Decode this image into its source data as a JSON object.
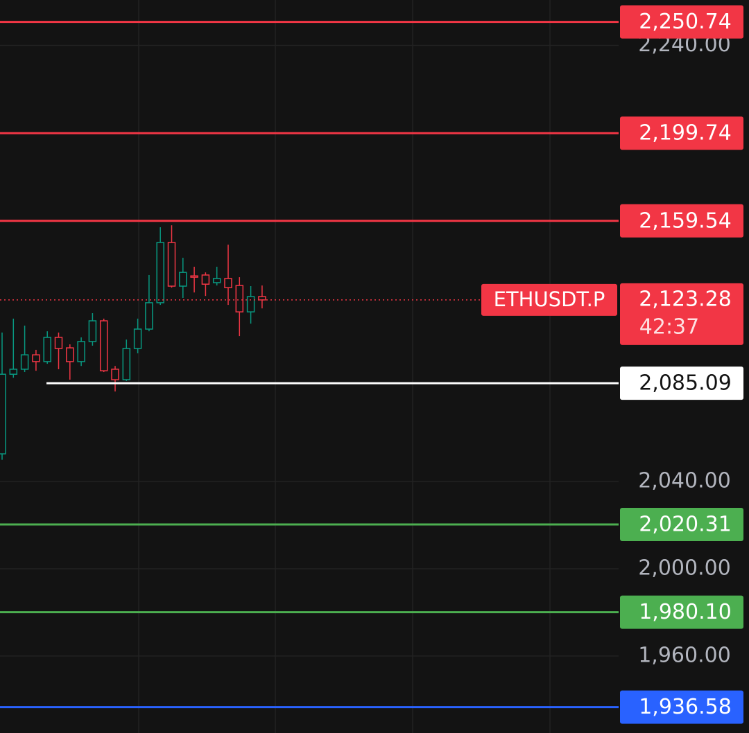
{
  "chart_data": {
    "type": "candlestick",
    "categories": [
      null,
      null,
      null,
      null,
      null,
      null,
      null,
      null,
      null,
      null,
      null,
      null,
      null,
      null,
      null,
      null,
      null,
      null,
      null,
      null,
      null,
      null,
      null,
      null
    ],
    "open": [
      2052.7,
      2089.2,
      2091.5,
      2098.1,
      2095.0,
      2106.1,
      2101.3,
      2095.0,
      2104.2,
      2113.7,
      2091.5,
      2086.7,
      2101.0,
      2109.9,
      2122.0,
      2149.6,
      2129.6,
      2134.3,
      2134.7,
      2131.2,
      2133.1,
      2129.9,
      2117.8,
      2124.8
    ],
    "high": [
      2108.3,
      2114.7,
      2111.5,
      2100.4,
      2108.9,
      2108.3,
      2102.9,
      2106.1,
      2117.2,
      2114.7,
      2093.0,
      2105.1,
      2114.7,
      2134.7,
      2156.6,
      2157.5,
      2142.6,
      2138.5,
      2135.9,
      2138.5,
      2148.6,
      2133.7,
      2129.6,
      2129.9
    ],
    "low": [
      2050.0,
      2087.6,
      2090.2,
      2090.8,
      2094.0,
      2091.5,
      2086.7,
      2093.0,
      2102.3,
      2090.2,
      2081.3,
      2086.1,
      2098.8,
      2108.9,
      2121.0,
      2128.9,
      2124.2,
      2126.7,
      2125.1,
      2129.9,
      2121.0,
      2106.7,
      2112.4,
      2119.4
    ],
    "close": [
      2089.2,
      2091.5,
      2098.1,
      2095.0,
      2106.1,
      2101.0,
      2095.0,
      2104.2,
      2113.7,
      2090.8,
      2086.7,
      2101.0,
      2109.9,
      2122.0,
      2149.6,
      2129.6,
      2135.9,
      2133.7,
      2130.5,
      2133.1,
      2128.9,
      2117.8,
      2124.8,
      2123.28
    ],
    "up_color": "#089981",
    "down_color": "#f23645",
    "ylim": [
      1924.7,
      2260.8
    ],
    "yticks": [
      {
        "value": 1960,
        "label": "1,960.00"
      },
      {
        "value": 2000,
        "label": "2,000.00"
      },
      {
        "value": 2040,
        "label": "2,040.00"
      },
      {
        "value": 2240,
        "label": "2,240.00"
      }
    ],
    "grid": true,
    "price_lines": [
      {
        "value": 2250.74,
        "label": "2,250.74",
        "color": "#f23645"
      },
      {
        "value": 2199.74,
        "label": "2,199.74",
        "color": "#f23645"
      },
      {
        "value": 2159.54,
        "label": "2,159.54",
        "color": "#f23645"
      },
      {
        "value": 2085.09,
        "label": "2,085.09",
        "color": "#ffffff"
      },
      {
        "value": 2020.31,
        "label": "2,020.31",
        "color": "#4caf50"
      },
      {
        "value": 1980.1,
        "label": "1,980.10",
        "color": "#4caf50"
      },
      {
        "value": 1936.58,
        "label": "1,936.58",
        "color": "#2962ff"
      }
    ],
    "last_price": {
      "value": 2123.28,
      "label": "2,123.28",
      "symbol": "ETHUSDT.P",
      "countdown": "42:37",
      "color": "#f23645"
    }
  }
}
